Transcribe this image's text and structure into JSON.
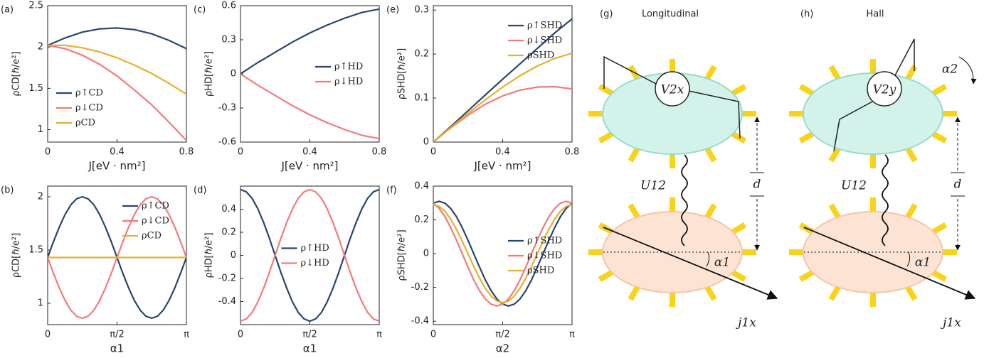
{
  "chart_data": [
    {
      "type": "line",
      "panel": "(a)",
      "ylabel": "ρCD[ℏ/e²]",
      "xlabel": "J[eV · nm²]",
      "xlim": [
        0,
        0.8
      ],
      "xticks": [
        0,
        0.4,
        0.8
      ],
      "ylim": [
        0.85,
        2.5
      ],
      "yticks": [
        1,
        1.5,
        2,
        2.5
      ],
      "legend": "lower left",
      "x": [
        0,
        0.1,
        0.2,
        0.3,
        0.4,
        0.5,
        0.6,
        0.7,
        0.8
      ],
      "series": [
        {
          "name": "ρ↑CD",
          "color": "#27466e",
          "values": [
            2.02,
            2.11,
            2.18,
            2.22,
            2.23,
            2.21,
            2.16,
            2.08,
            1.98
          ]
        },
        {
          "name": "ρ↓CD",
          "color": "#f47a7a",
          "values": [
            2.02,
            1.98,
            1.9,
            1.79,
            1.65,
            1.48,
            1.3,
            1.09,
            0.87
          ]
        },
        {
          "name": "ρCD",
          "color": "#e6b02e",
          "values": [
            2.02,
            2.02,
            1.99,
            1.94,
            1.87,
            1.78,
            1.68,
            1.56,
            1.43
          ]
        }
      ]
    },
    {
      "type": "line",
      "panel": "(b)",
      "ylabel": "ρCD[ℏ/e²]",
      "xlabel": "α1",
      "xlim": [
        0,
        3.142
      ],
      "xticks": [
        0,
        {
          "value": 1.571,
          "label": "π/2"
        },
        {
          "value": 3.142,
          "label": "π"
        }
      ],
      "ylim": [
        0.8,
        2.1
      ],
      "yticks": [
        1,
        1.5,
        2
      ],
      "legend": "upper right",
      "x": [
        0,
        0.131,
        0.262,
        0.393,
        0.524,
        0.654,
        0.785,
        0.916,
        1.047,
        1.178,
        1.309,
        1.44,
        1.571,
        1.702,
        1.833,
        1.963,
        2.094,
        2.225,
        2.356,
        2.487,
        2.618,
        2.749,
        2.88,
        3.01,
        3.142
      ],
      "series": [
        {
          "name": "ρ↑CD",
          "color": "#27466e",
          "values": [
            1.43,
            1.578,
            1.715,
            1.833,
            1.924,
            1.981,
            2.0,
            1.981,
            1.924,
            1.833,
            1.715,
            1.578,
            1.43,
            1.282,
            1.145,
            1.027,
            0.936,
            0.879,
            0.86,
            0.879,
            0.936,
            1.027,
            1.145,
            1.282,
            1.43
          ]
        },
        {
          "name": "ρ↓CD",
          "color": "#f47a7a",
          "values": [
            1.43,
            1.282,
            1.145,
            1.027,
            0.936,
            0.879,
            0.86,
            0.879,
            0.936,
            1.027,
            1.145,
            1.282,
            1.43,
            1.578,
            1.715,
            1.833,
            1.924,
            1.981,
            2.0,
            1.981,
            1.924,
            1.833,
            1.715,
            1.578,
            1.43
          ]
        },
        {
          "name": "ρCD",
          "color": "#e6b02e",
          "values": [
            1.43,
            1.43,
            1.43,
            1.43,
            1.43,
            1.43,
            1.43,
            1.43,
            1.43,
            1.43,
            1.43,
            1.43,
            1.43,
            1.43,
            1.43,
            1.43,
            1.43,
            1.43,
            1.43,
            1.43,
            1.43,
            1.43,
            1.43,
            1.43,
            1.43
          ]
        }
      ]
    },
    {
      "type": "line",
      "panel": "(c)",
      "ylabel": "ρHD[ℏ/e²]",
      "xlabel": "J[eV · nm²]",
      "xlim": [
        0,
        0.8
      ],
      "xticks": [
        0,
        0.4,
        0.8
      ],
      "ylim": [
        -0.6,
        0.6
      ],
      "yticks": [
        -0.6,
        -0.3,
        0,
        0.3,
        0.6
      ],
      "legend": "center right",
      "x": [
        0,
        0.1,
        0.2,
        0.3,
        0.4,
        0.5,
        0.6,
        0.7,
        0.8
      ],
      "series": [
        {
          "name": "ρ↑HD",
          "color": "#27466e",
          "values": [
            0,
            0.1,
            0.19,
            0.28,
            0.36,
            0.43,
            0.49,
            0.54,
            0.57
          ]
        },
        {
          "name": "ρ↓HD",
          "color": "#f47a7a",
          "values": [
            0,
            -0.1,
            -0.19,
            -0.28,
            -0.36,
            -0.43,
            -0.49,
            -0.54,
            -0.57
          ]
        }
      ]
    },
    {
      "type": "line",
      "panel": "(d)",
      "ylabel": "ρHD[ℏ/e²]",
      "xlabel": "α1",
      "xlim": [
        0,
        3.142
      ],
      "xticks": [
        0,
        {
          "value": 1.571,
          "label": "π/2"
        },
        {
          "value": 3.142,
          "label": "π"
        }
      ],
      "ylim": [
        -0.6,
        0.6
      ],
      "yticks": [
        -0.4,
        -0.2,
        0,
        0.2,
        0.4
      ],
      "legend": "center",
      "x": [
        0,
        0.131,
        0.262,
        0.393,
        0.524,
        0.654,
        0.785,
        0.916,
        1.047,
        1.178,
        1.309,
        1.44,
        1.571,
        1.702,
        1.833,
        1.963,
        2.094,
        2.225,
        2.356,
        2.487,
        2.618,
        2.749,
        2.88,
        3.01,
        3.142
      ],
      "series": [
        {
          "name": "ρ↑HD",
          "color": "#27466e",
          "values": [
            0.57,
            0.551,
            0.494,
            0.403,
            0.285,
            0.148,
            0,
            -0.148,
            -0.285,
            -0.403,
            -0.494,
            -0.551,
            -0.57,
            -0.551,
            -0.494,
            -0.403,
            -0.285,
            -0.148,
            0,
            0.148,
            0.285,
            0.403,
            0.494,
            0.551,
            0.57
          ]
        },
        {
          "name": "ρ↓HD",
          "color": "#f47a7a",
          "values": [
            -0.57,
            -0.551,
            -0.494,
            -0.403,
            -0.285,
            -0.148,
            0,
            0.148,
            0.285,
            0.403,
            0.494,
            0.551,
            0.57,
            0.551,
            0.494,
            0.403,
            0.285,
            0.148,
            0,
            -0.148,
            -0.285,
            -0.403,
            -0.494,
            -0.551,
            -0.57
          ]
        }
      ]
    },
    {
      "type": "line",
      "panel": "(e)",
      "ylabel": "ρSHD[ℏ/e²]",
      "xlabel": "J[eV · nm²]",
      "xlim": [
        0,
        0.8
      ],
      "xticks": [
        0,
        0.4,
        0.8
      ],
      "ylim": [
        0,
        0.31
      ],
      "yticks": [
        0,
        0.1,
        0.2,
        0.3
      ],
      "legend": "upper right",
      "x": [
        0,
        0.1,
        0.2,
        0.3,
        0.4,
        0.5,
        0.6,
        0.7,
        0.8
      ],
      "series": [
        {
          "name": "ρ↑SHD",
          "color": "#27466e",
          "values": [
            0,
            0.035,
            0.071,
            0.107,
            0.143,
            0.178,
            0.213,
            0.248,
            0.28
          ]
        },
        {
          "name": "ρ↓SHD",
          "color": "#f47a7a",
          "values": [
            0,
            0.032,
            0.061,
            0.086,
            0.105,
            0.118,
            0.125,
            0.126,
            0.121
          ]
        },
        {
          "name": "ρSHD",
          "color": "#e6b02e",
          "values": [
            0,
            0.033,
            0.065,
            0.096,
            0.125,
            0.151,
            0.173,
            0.19,
            0.202
          ]
        }
      ]
    },
    {
      "type": "line",
      "panel": "(f)",
      "ylabel": "ρSHD[ℏ/e²]",
      "xlabel": "α2",
      "xlim": [
        0,
        3.142
      ],
      "xticks": [
        0,
        {
          "value": 1.571,
          "label": "π/2"
        },
        {
          "value": 3.142,
          "label": "π"
        }
      ],
      "ylim": [
        -0.42,
        0.4
      ],
      "yticks": [
        -0.4,
        -0.2,
        0,
        0.2,
        0.4
      ],
      "legend": "center right",
      "x": [
        0,
        0.131,
        0.262,
        0.393,
        0.524,
        0.654,
        0.785,
        0.916,
        1.047,
        1.178,
        1.309,
        1.44,
        1.571,
        1.702,
        1.833,
        1.963,
        2.094,
        2.225,
        2.356,
        2.487,
        2.618,
        2.749,
        2.88,
        3.01,
        3.142
      ],
      "series": [
        {
          "name": "ρ↑SHD",
          "color": "#27466e",
          "values": [
            0.299,
            0.31,
            0.299,
            0.268,
            0.219,
            0.155,
            0.08,
            0,
            -0.08,
            -0.155,
            -0.219,
            -0.268,
            -0.299,
            -0.31,
            -0.299,
            -0.268,
            -0.219,
            -0.155,
            -0.08,
            0,
            0.08,
            0.155,
            0.219,
            0.268,
            0.299
          ]
        },
        {
          "name": "ρ↓SHD",
          "color": "#f47a7a",
          "values": [
            0.299,
            0.268,
            0.219,
            0.155,
            0.08,
            0,
            -0.08,
            -0.155,
            -0.219,
            -0.268,
            -0.299,
            -0.31,
            -0.299,
            -0.268,
            -0.219,
            -0.155,
            -0.08,
            0,
            0.08,
            0.155,
            0.219,
            0.268,
            0.299,
            0.31,
            0.299
          ]
        },
        {
          "name": "ρSHD",
          "color": "#e6b02e",
          "values": [
            0.29,
            0.28,
            0.251,
            0.205,
            0.145,
            0.075,
            0,
            -0.075,
            -0.145,
            -0.205,
            -0.251,
            -0.28,
            -0.29,
            -0.28,
            -0.251,
            -0.205,
            -0.145,
            -0.075,
            0,
            0.075,
            0.145,
            0.205,
            0.251,
            0.28,
            0.29
          ]
        }
      ]
    }
  ],
  "diagrams": [
    {
      "panel": "(g)",
      "title": "Longitudinal",
      "voltage": "V2x",
      "coupling": "U12",
      "distance": "d",
      "angle": "α1",
      "current": "j1x"
    },
    {
      "panel": "(h)",
      "title": "Hall",
      "voltage": "V2y",
      "coupling": "U12",
      "distance": "d",
      "angle": "α1",
      "current": "j1x",
      "angle2": "α2"
    }
  ]
}
